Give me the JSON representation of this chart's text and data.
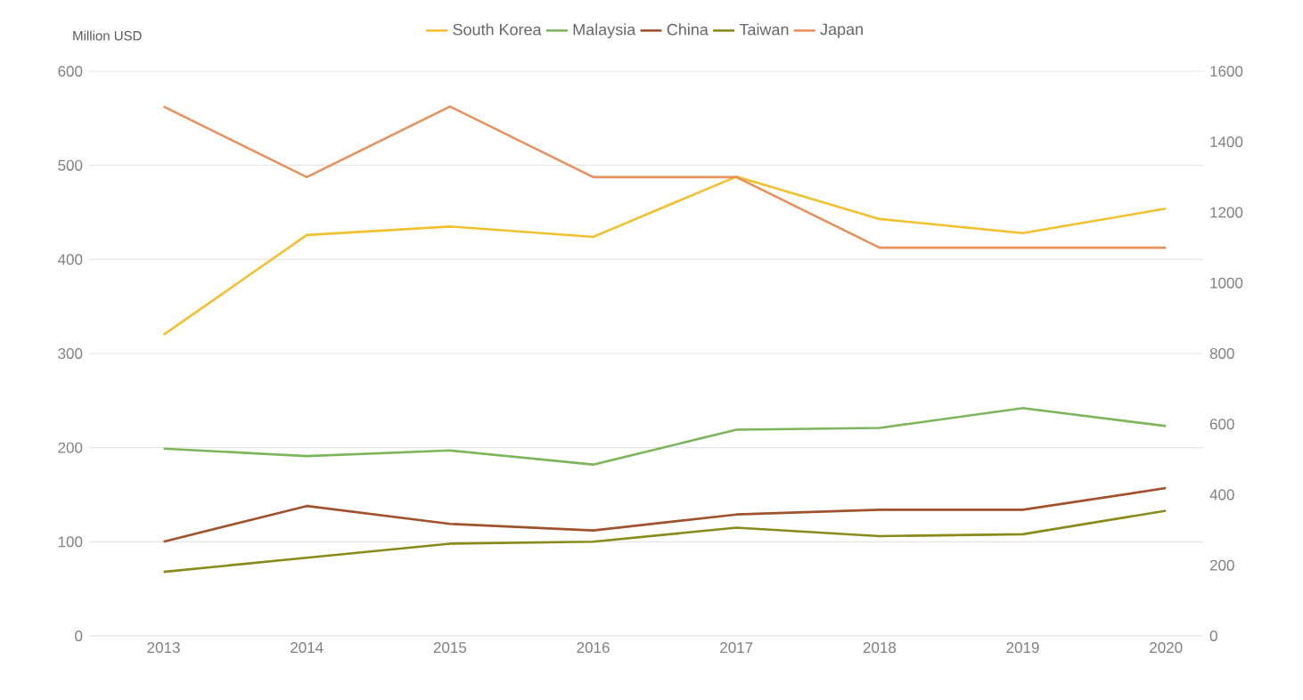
{
  "chart_data": {
    "type": "line",
    "ylabel": "Million USD",
    "categories": [
      "2013",
      "2014",
      "2015",
      "2016",
      "2017",
      "2018",
      "2019",
      "2020"
    ],
    "series": [
      {
        "name": "South Korea",
        "color": "#f2c12e",
        "values": [
          320,
          426,
          435,
          424,
          488,
          443,
          428,
          454
        ]
      },
      {
        "name": "Malaysia",
        "color": "#7cb55a",
        "values": [
          199,
          191,
          197,
          182,
          219,
          221,
          242,
          223
        ]
      },
      {
        "name": "China",
        "color": "#a0522d",
        "values": [
          100,
          138,
          119,
          112,
          129,
          134,
          134,
          157
        ]
      },
      {
        "name": "Taiwan",
        "color": "#8a8a1a",
        "values": [
          68,
          83,
          98,
          100,
          115,
          106,
          108,
          133
        ]
      },
      {
        "name": "Japan",
        "color": "#e8915a",
        "axis": "y2",
        "values": [
          1500,
          1300,
          1500,
          1300,
          1300,
          1100,
          1100,
          1100
        ]
      }
    ],
    "ylim": [
      0,
      600
    ],
    "yticks": [
      0,
      100,
      200,
      300,
      400,
      500,
      600
    ],
    "y2lim": [
      0,
      1600
    ],
    "y2ticks": [
      0,
      200,
      400,
      600,
      800,
      1000,
      1200,
      1400,
      1600
    ],
    "grid": "y",
    "legend": "top"
  }
}
